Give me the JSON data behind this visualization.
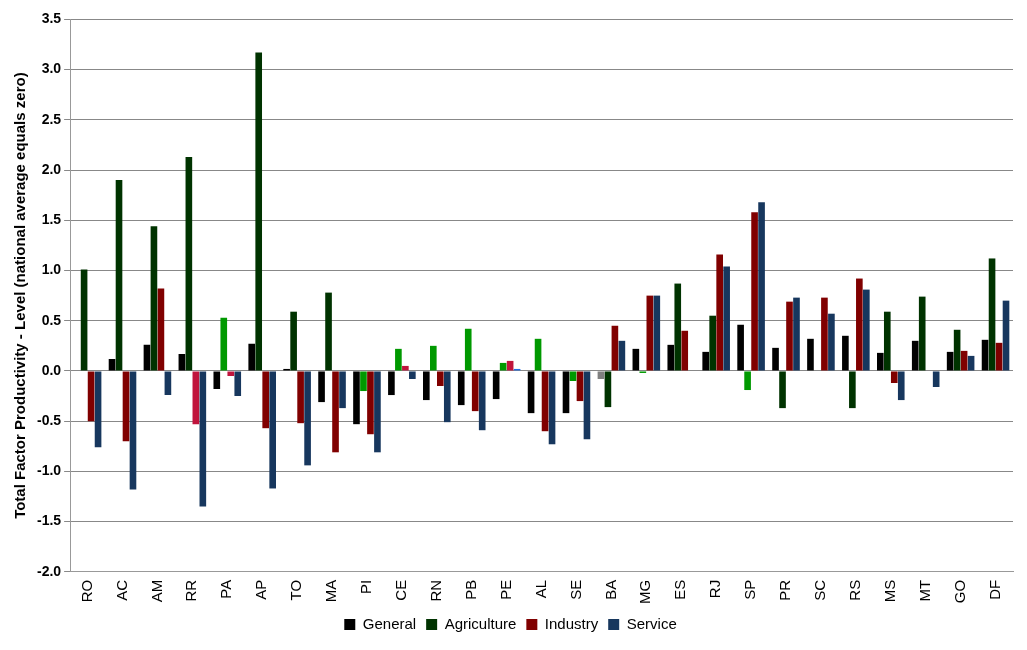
{
  "chart_data": {
    "type": "bar",
    "ylabel": "Total Factor Productivity - Level (national average equals zero)",
    "categories": [
      "RO",
      "AC",
      "AM",
      "RR",
      "PA",
      "AP",
      "TO",
      "MA",
      "PI",
      "CE",
      "RN",
      "PB",
      "PE",
      "AL",
      "SE",
      "BA",
      "MG",
      "ES",
      "RJ",
      "SP",
      "PR",
      "SC",
      "RS",
      "MS",
      "MT",
      "GO",
      "DF"
    ],
    "series": [
      {
        "name": "General",
        "color": "#000000",
        "colors": [
          "#000000",
          "#000000",
          "#000000",
          "#000000",
          "#000000",
          "#000000",
          "#000000",
          "#000000",
          "#000000",
          "#000000",
          "#000000",
          "#000000",
          "#000000",
          "#000000",
          "#000000",
          "#808080",
          "#000000",
          "#000000",
          "#000000",
          "#000000",
          "#000000",
          "#000000",
          "#000000",
          "#000000",
          "#000000",
          "#000000",
          "#000000"
        ],
        "values": [
          0,
          0.12,
          0.26,
          0.17,
          -0.18,
          0.27,
          0.02,
          -0.31,
          -0.53,
          -0.24,
          -0.29,
          -0.34,
          -0.28,
          -0.42,
          -0.42,
          -0.08,
          0.22,
          0.26,
          0.19,
          0.46,
          0.23,
          0.32,
          0.35,
          0.18,
          0.3,
          0.19,
          0.31
        ]
      },
      {
        "name": "Agriculture",
        "color": "#003300",
        "colors": [
          "#003300",
          "#003300",
          "#003300",
          "#003300",
          "#009900",
          "#003300",
          "#003300",
          "#003300",
          "#009900",
          "#009900",
          "#009900",
          "#009900",
          "#009900",
          "#009900",
          "#009900",
          "#003300",
          "#009900",
          "#003300",
          "#003300",
          "#009900",
          "#003300",
          "#003300",
          "#003300",
          "#003300",
          "#003300",
          "#003300",
          "#003300"
        ],
        "values": [
          1.01,
          1.9,
          1.44,
          2.13,
          0.53,
          3.17,
          0.59,
          0.78,
          -0.2,
          0.22,
          0.25,
          0.42,
          0.08,
          0.32,
          -0.1,
          -0.36,
          -0.02,
          0.87,
          0.55,
          -0.19,
          -0.37,
          0,
          -0.37,
          0.59,
          0.74,
          0.41,
          1.12
        ]
      },
      {
        "name": "Industry",
        "color": "#800000",
        "colors": [
          "#800000",
          "#800000",
          "#800000",
          "#c0143c",
          "#c0143c",
          "#800000",
          "#800000",
          "#800000",
          "#800000",
          "#c0143c",
          "#800000",
          "#800000",
          "#c0143c",
          "#800000",
          "#800000",
          "#800000",
          "#800000",
          "#800000",
          "#800000",
          "#800000",
          "#800000",
          "#800000",
          "#800000",
          "#800000",
          "#800000",
          "#800000",
          "#800000"
        ],
        "values": [
          -0.5,
          -0.7,
          0.82,
          -0.53,
          -0.05,
          -0.57,
          -0.52,
          -0.81,
          -0.63,
          0.05,
          -0.15,
          -0.4,
          0.1,
          -0.6,
          -0.3,
          0.45,
          0.75,
          0.4,
          1.16,
          1.58,
          0.69,
          0.73,
          0.92,
          -0.12,
          0,
          0.2,
          0.28
        ]
      },
      {
        "name": "Service",
        "color": "#17375e",
        "colors": [
          "#17375e",
          "#17375e",
          "#17375e",
          "#17375e",
          "#17375e",
          "#17375e",
          "#17375e",
          "#17375e",
          "#17375e",
          "#17375e",
          "#17375e",
          "#17375e",
          "#1e6ee6",
          "#17375e",
          "#17375e",
          "#17375e",
          "#17375e",
          "#17375e",
          "#17375e",
          "#17375e",
          "#17375e",
          "#17375e",
          "#17375e",
          "#17375e",
          "#17375e",
          "#17375e",
          "#17375e"
        ],
        "values": [
          -0.76,
          -1.18,
          -0.24,
          -1.35,
          -0.25,
          -1.17,
          -0.94,
          -0.37,
          -0.81,
          -0.08,
          -0.51,
          -0.59,
          0.02,
          -0.73,
          -0.68,
          0.3,
          0.75,
          0,
          1.04,
          1.68,
          0.73,
          0.57,
          0.81,
          -0.29,
          -0.16,
          0.15,
          0.7
        ]
      }
    ],
    "ylim": [
      -2.0,
      3.5
    ],
    "yticks": [
      {
        "value": -2,
        "label": "-2.0"
      },
      -1.5,
      {
        "value": -1,
        "label": "-1.0"
      },
      -0.5,
      {
        "value": 0,
        "label": "0.0"
      },
      0.5,
      {
        "value": 1,
        "label": "1.0"
      },
      1.5,
      {
        "value": 2,
        "label": "2.0"
      },
      2.5,
      {
        "value": 3,
        "label": "3.0"
      },
      3.5
    ],
    "grid": "y",
    "legend": "bottom"
  }
}
